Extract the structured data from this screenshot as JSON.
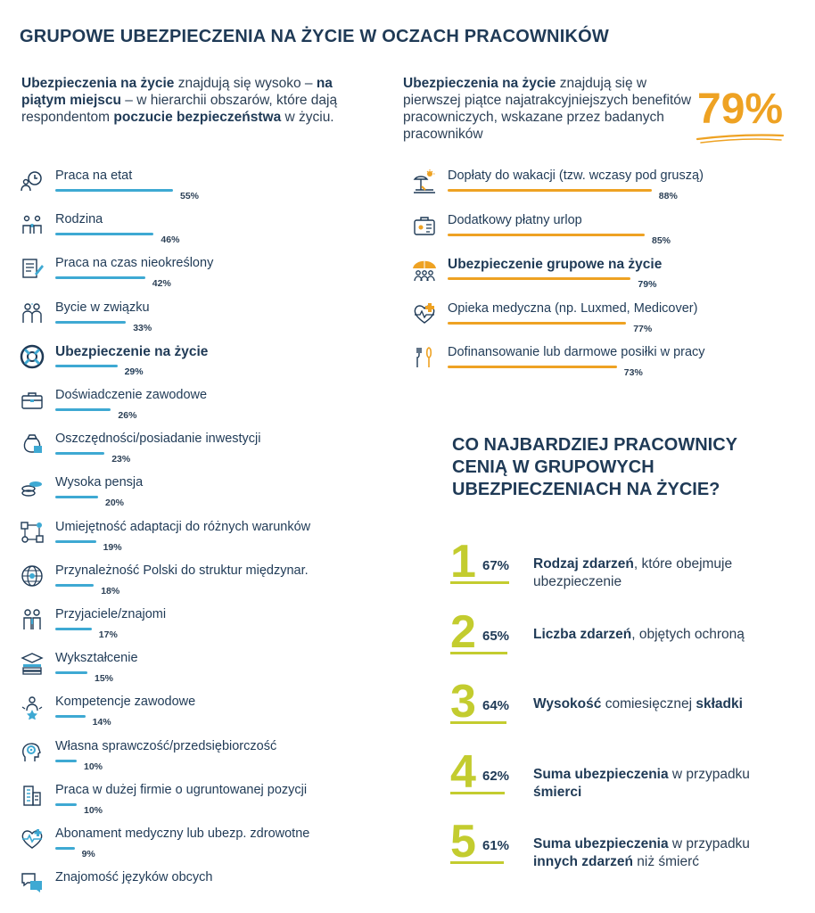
{
  "header": {
    "title": "GRUPOWE UBEZPIECZENIA NA ŻYCIE W OCZACH PRACOWNIKÓW"
  },
  "intro_left": {
    "p1": "Ubezpieczenia na życie",
    "p2": " znajdują się wysoko – ",
    "p3": "na piątym miejscu",
    "p4": " – w hierarchii obszarów, które dają respondentom ",
    "p5": "poczucie bezpieczeństwa",
    "p6": " w życiu."
  },
  "intro_right": {
    "p1": "Ubezpieczenia na życie",
    "p2": " znajdują się w pierwszej piątce najatrakcyjniejszych benefitów pracowniczych, wskazane przez badanych pracowników",
    "big_value": "79%"
  },
  "colors": {
    "left_bar": "#3ea9d3",
    "right_bar": "#eea223",
    "rank": "#c3cc2f",
    "navy": "#1f3a56"
  },
  "chart_data": [
    {
      "type": "bar",
      "orientation": "horizontal",
      "categories": [
        "Praca na etat",
        "Rodzina",
        "Praca na czas nieokreślony",
        "Bycie w związku",
        "Ubezpieczenie na życie",
        "Doświadczenie zawodowe",
        "Oszczędności/posiadanie inwestycji",
        "Wysoka pensja",
        "Umiejętność adaptacji do różnych warunków",
        "Przynależność Polski do struktur międzynar.",
        "Przyjaciele/znajomi",
        "Wykształcenie",
        "Kompetencje zawodowe",
        "Własna sprawczość/przedsiębiorczość",
        "Praca w dużej firmie o ugruntowanej pozycji",
        "Abonament medyczny lub ubezp. zdrowotne",
        "Znajomość języków obcych"
      ],
      "values": [
        55,
        46,
        42,
        33,
        29,
        26,
        23,
        20,
        19,
        18,
        17,
        15,
        14,
        10,
        10,
        9,
        null
      ],
      "labels": [
        "55%",
        "46%",
        "42%",
        "33%",
        "29%",
        "26%",
        "23%",
        "20%",
        "19%",
        "18%",
        "17%",
        "15%",
        "14%",
        "10%",
        "10%",
        "9%",
        ""
      ],
      "highlight_index": 4,
      "icons": [
        "clock-person-icon",
        "family-icon",
        "document-pen-icon",
        "couple-icon",
        "lifebuoy-icon",
        "briefcase-icon",
        "money-bag-icon",
        "coins-icon",
        "network-icon",
        "globe-icon",
        "friends-icon",
        "books-icon",
        "competence-icon",
        "head-gear-icon",
        "building-icon",
        "heart-pulse-icon",
        "speech-bubbles-icon"
      ],
      "xlim": [
        0,
        100
      ]
    },
    {
      "type": "bar",
      "orientation": "horizontal",
      "categories": [
        "Dopłaty do wakacji (tzw. wczasy pod gruszą)",
        "Dodatkowy płatny urlop",
        "Ubezpieczenie grupowe na życie",
        "Opieka medyczna (np. Luxmed, Medicover)",
        "Dofinansowanie lub darmowe posiłki w pracy"
      ],
      "values": [
        88,
        85,
        79,
        77,
        73
      ],
      "labels": [
        "88%",
        "85%",
        "79%",
        "77%",
        "73%"
      ],
      "highlight_index": 2,
      "icons": [
        "beach-sun-icon",
        "suitcase-icon",
        "umbrella-people-icon",
        "medical-cross-icon",
        "cutlery-icon"
      ],
      "xlim": [
        0,
        100
      ]
    },
    {
      "type": "table",
      "title": "CO NAJBARDZIEJ PRACOWNICY CENIĄ W GRUPOWYCH UBEZPIECZENIACH NA ŻYCIE?",
      "rows": [
        {
          "rank": "1",
          "value": 67,
          "label": "67%",
          "b1": "Rodzaj zdarzeń",
          "t1": ", które obejmuje ubezpieczenie",
          "b2": "",
          "t2": ""
        },
        {
          "rank": "2",
          "value": 65,
          "label": "65%",
          "b1": "Liczba zdarzeń",
          "t1": ", objętych ochroną",
          "b2": "",
          "t2": ""
        },
        {
          "rank": "3",
          "value": 64,
          "label": "64%",
          "b1": "Wysokość",
          "t1": " comiesięcznej ",
          "b2": "składki",
          "t2": ""
        },
        {
          "rank": "4",
          "value": 62,
          "label": "62%",
          "b1": "Suma ubezpieczenia",
          "t1": " w przypadku ",
          "b2": "śmierci",
          "t2": ""
        },
        {
          "rank": "5",
          "value": 61,
          "label": "61%",
          "b1": "Suma ubezpieczenia",
          "t1": " w przypadku ",
          "b2": "innych zdarzeń",
          "t2": " niż śmierć"
        }
      ]
    }
  ]
}
